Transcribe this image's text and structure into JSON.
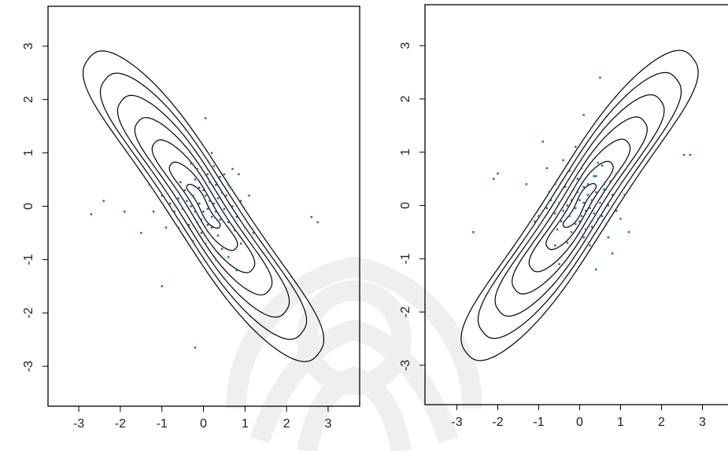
{
  "chart_data": [
    {
      "type": "scatter",
      "title": "",
      "xlabel": "",
      "ylabel": "",
      "xlim": [
        -3.8,
        3.8
      ],
      "ylim": [
        -3.8,
        3.8
      ],
      "x_ticks": [
        "-3",
        "-2",
        "-1",
        "0",
        "1",
        "2",
        "3"
      ],
      "y_ticks": [
        "-3",
        "-2",
        "-1",
        "0",
        "1",
        "2",
        "3"
      ],
      "grid": false,
      "point_color": "#1f5fa8",
      "contour_color": "#000000",
      "contour_orientation": "negative-slope",
      "contour_levels": 7,
      "points": [
        [
          0.0,
          -0.1
        ],
        [
          0.1,
          -0.05
        ],
        [
          -0.1,
          0.05
        ],
        [
          0.2,
          -0.2
        ],
        [
          -0.2,
          -0.1
        ],
        [
          0.15,
          0.1
        ],
        [
          -0.05,
          -0.25
        ],
        [
          0.3,
          -0.1
        ],
        [
          -0.3,
          0.0
        ],
        [
          0.05,
          0.2
        ],
        [
          0.25,
          0.05
        ],
        [
          -0.15,
          -0.3
        ],
        [
          0.4,
          -0.25
        ],
        [
          -0.4,
          0.1
        ],
        [
          0.1,
          -0.35
        ],
        [
          0.35,
          0.15
        ],
        [
          -0.25,
          0.2
        ],
        [
          0.5,
          -0.05
        ],
        [
          -0.5,
          -0.05
        ],
        [
          0.0,
          0.3
        ],
        [
          0.2,
          -0.4
        ],
        [
          -0.1,
          0.35
        ],
        [
          0.6,
          -0.3
        ],
        [
          -0.6,
          0.15
        ],
        [
          0.45,
          0.25
        ],
        [
          -0.35,
          -0.35
        ],
        [
          0.7,
          0.0
        ],
        [
          -0.7,
          -0.1
        ],
        [
          0.15,
          0.45
        ],
        [
          -0.05,
          -0.5
        ],
        [
          0.3,
          0.4
        ],
        [
          0.55,
          0.2
        ],
        [
          -0.45,
          0.3
        ],
        [
          0.8,
          -0.2
        ],
        [
          0.1,
          0.6
        ],
        [
          -0.2,
          0.5
        ],
        [
          0.35,
          -0.55
        ],
        [
          0.65,
          0.35
        ],
        [
          -0.8,
          0.05
        ],
        [
          0.9,
          0.1
        ],
        [
          0.5,
          0.6
        ],
        [
          -0.15,
          0.7
        ],
        [
          0.2,
          1.0
        ],
        [
          -0.3,
          0.8
        ],
        [
          0.05,
          1.65
        ],
        [
          0.7,
          0.7
        ],
        [
          0.85,
          0.6
        ],
        [
          1.0,
          -0.4
        ],
        [
          0.9,
          -0.7
        ],
        [
          1.2,
          -0.5
        ],
        [
          0.6,
          -0.95
        ],
        [
          0.8,
          -1.2
        ],
        [
          0.3,
          -1.0
        ],
        [
          -0.9,
          -0.4
        ],
        [
          -1.0,
          0.2
        ],
        [
          -1.2,
          -0.1
        ],
        [
          -1.5,
          -0.5
        ],
        [
          -1.3,
          0.4
        ],
        [
          -1.9,
          -0.1
        ],
        [
          -2.4,
          0.1
        ],
        [
          -2.7,
          -0.15
        ],
        [
          -1.0,
          -1.5
        ],
        [
          -0.2,
          -2.65
        ],
        [
          2.6,
          -0.2
        ],
        [
          2.75,
          -0.3
        ],
        [
          0.6,
          0.4
        ],
        [
          0.4,
          0.55
        ],
        [
          -0.6,
          -0.4
        ],
        [
          0.75,
          -0.45
        ],
        [
          -0.25,
          -0.65
        ],
        [
          0.05,
          -0.7
        ],
        [
          -0.55,
          0.45
        ],
        [
          0.25,
          0.75
        ],
        [
          0.45,
          -0.8
        ],
        [
          1.1,
          0.2
        ]
      ]
    },
    {
      "type": "scatter",
      "title": "",
      "xlabel": "",
      "ylabel": "",
      "xlim": [
        -3.8,
        3.8
      ],
      "ylim": [
        -3.8,
        3.8
      ],
      "x_ticks": [
        "-3",
        "-2",
        "-1",
        "0",
        "1",
        "2",
        "3"
      ],
      "y_ticks": [
        "-3",
        "-2",
        "-1",
        "0",
        "1",
        "2",
        "3"
      ],
      "grid": false,
      "point_color": "#1f5fa8",
      "contour_color": "#000000",
      "contour_orientation": "positive-slope",
      "contour_levels": 7,
      "points": [
        [
          0.0,
          0.1
        ],
        [
          0.1,
          0.05
        ],
        [
          -0.1,
          -0.05
        ],
        [
          0.2,
          0.2
        ],
        [
          -0.2,
          0.1
        ],
        [
          0.15,
          -0.1
        ],
        [
          -0.05,
          0.25
        ],
        [
          0.3,
          0.1
        ],
        [
          -0.3,
          0.0
        ],
        [
          0.05,
          -0.2
        ],
        [
          0.25,
          -0.05
        ],
        [
          -0.15,
          0.3
        ],
        [
          0.4,
          0.25
        ],
        [
          -0.4,
          -0.1
        ],
        [
          0.1,
          0.35
        ],
        [
          0.35,
          -0.15
        ],
        [
          -0.25,
          -0.2
        ],
        [
          0.5,
          0.05
        ],
        [
          -0.5,
          0.05
        ],
        [
          0.0,
          -0.3
        ],
        [
          0.2,
          0.4
        ],
        [
          -0.1,
          -0.35
        ],
        [
          0.6,
          0.3
        ],
        [
          -0.6,
          -0.15
        ],
        [
          0.45,
          -0.25
        ],
        [
          -0.35,
          0.35
        ],
        [
          0.7,
          0.0
        ],
        [
          -0.7,
          0.1
        ],
        [
          0.15,
          -0.45
        ],
        [
          -0.05,
          0.5
        ],
        [
          0.3,
          -0.4
        ],
        [
          0.55,
          -0.2
        ],
        [
          -0.45,
          -0.3
        ],
        [
          0.8,
          0.2
        ],
        [
          0.1,
          -0.6
        ],
        [
          -0.2,
          -0.5
        ],
        [
          0.35,
          0.55
        ],
        [
          0.65,
          -0.35
        ],
        [
          -0.8,
          -0.05
        ],
        [
          0.9,
          -0.1
        ],
        [
          -0.6,
          -0.75
        ],
        [
          -0.3,
          -0.7
        ],
        [
          0.4,
          -1.2
        ],
        [
          -0.1,
          1.1
        ],
        [
          0.1,
          1.7
        ],
        [
          0.5,
          2.4
        ],
        [
          -0.8,
          0.7
        ],
        [
          -0.9,
          1.2
        ],
        [
          -2.0,
          0.6
        ],
        [
          -2.1,
          0.5
        ],
        [
          -2.6,
          -0.5
        ],
        [
          -1.1,
          -0.3
        ],
        [
          -1.3,
          0.4
        ],
        [
          -0.5,
          -1.1
        ],
        [
          0.8,
          -0.9
        ],
        [
          0.7,
          -0.6
        ],
        [
          1.2,
          -0.5
        ],
        [
          2.55,
          0.95
        ],
        [
          2.7,
          0.95
        ],
        [
          0.6,
          0.4
        ],
        [
          0.4,
          0.55
        ],
        [
          -0.6,
          0.4
        ],
        [
          0.75,
          0.45
        ],
        [
          -0.25,
          0.65
        ],
        [
          0.05,
          0.7
        ],
        [
          -0.55,
          -0.45
        ],
        [
          0.25,
          -0.75
        ],
        [
          0.45,
          0.8
        ],
        [
          1.1,
          0.2
        ],
        [
          -1.0,
          -0.2
        ],
        [
          0.9,
          0.6
        ],
        [
          -0.75,
          0.25
        ],
        [
          0.55,
          0.75
        ],
        [
          -0.4,
          0.85
        ],
        [
          1.0,
          -0.25
        ]
      ]
    }
  ]
}
